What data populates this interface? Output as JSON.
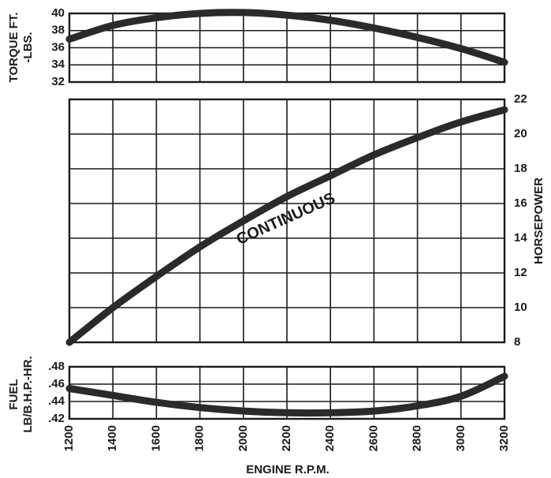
{
  "chart_data": [
    {
      "type": "line",
      "panel": "torque",
      "ylabel_lines": [
        "TORQUE FT.",
        "-LBS."
      ],
      "xlim": [
        1200,
        3200
      ],
      "ylim": [
        32,
        40
      ],
      "y_ticks": [
        "40",
        "38",
        "36",
        "34",
        "32"
      ],
      "x": [
        1200,
        1400,
        1600,
        1800,
        2000,
        2200,
        2400,
        2600,
        2800,
        3000,
        3200
      ],
      "series": [
        {
          "values": [
            37.0,
            38.6,
            39.5,
            40.0,
            40.1,
            39.8,
            39.2,
            38.3,
            37.2,
            35.9,
            34.3
          ]
        }
      ]
    },
    {
      "type": "line",
      "panel": "horsepower",
      "ylabel": "HORSEPOWER",
      "annotation": "CONTINUOUS",
      "xlim": [
        1200,
        3200
      ],
      "ylim": [
        8,
        22
      ],
      "y_ticks": [
        "22",
        "20",
        "18",
        "16",
        "14",
        "12",
        "10",
        "8"
      ],
      "x": [
        1200,
        1400,
        1600,
        1800,
        2000,
        2200,
        2400,
        2600,
        2800,
        3000,
        3200
      ],
      "series": [
        {
          "values": [
            8.0,
            10.0,
            11.8,
            13.5,
            15.0,
            16.4,
            17.6,
            18.8,
            19.8,
            20.7,
            21.4
          ]
        }
      ]
    },
    {
      "type": "line",
      "panel": "fuel",
      "ylabel_lines": [
        "FUEL",
        "LB/B.H.P.-HR."
      ],
      "xlabel": "ENGINE R.P.M.",
      "xlim": [
        1200,
        3200
      ],
      "ylim": [
        0.42,
        0.48
      ],
      "y_ticks": [
        ".48",
        ".46",
        ".44",
        ".42"
      ],
      "x_ticks": [
        "1200",
        "1400",
        "1600",
        "1800",
        "2000",
        "2200",
        "2400",
        "2600",
        "2800",
        "3000",
        "3200"
      ],
      "x": [
        1200,
        1400,
        1600,
        1800,
        2000,
        2200,
        2400,
        2600,
        2800,
        3000,
        3200
      ],
      "series": [
        {
          "values": [
            0.455,
            0.447,
            0.439,
            0.433,
            0.429,
            0.427,
            0.427,
            0.429,
            0.435,
            0.446,
            0.469
          ]
        }
      ]
    }
  ]
}
